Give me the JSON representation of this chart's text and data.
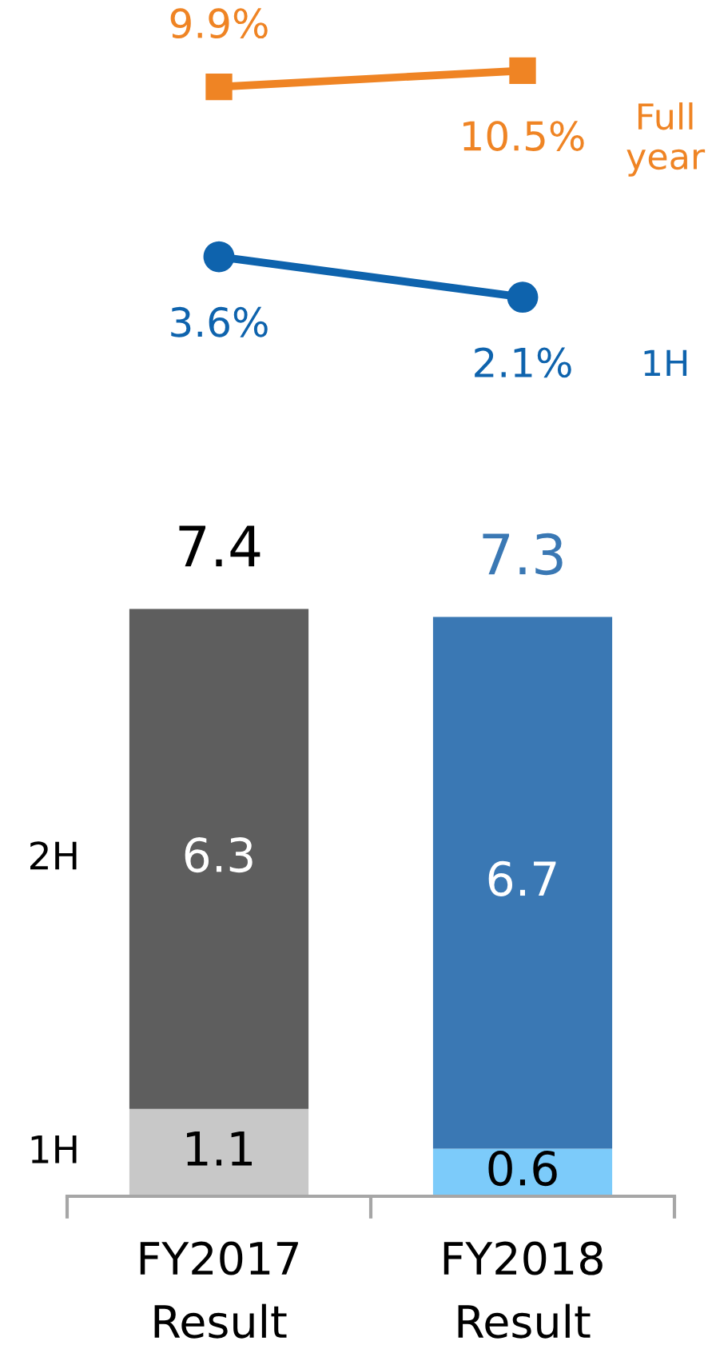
{
  "chart_data": [
    {
      "type": "line",
      "categories": [
        null,
        null
      ],
      "series": [
        {
          "name": "Full year",
          "color": "#ef8424",
          "marker": "square",
          "values": [
            9.9,
            10.5
          ],
          "value_labels": [
            "9.9%",
            "10.5%"
          ]
        },
        {
          "name": "1H",
          "color": "#0e63ad",
          "marker": "circle",
          "values": [
            3.6,
            2.1
          ],
          "value_labels": [
            "3.6%",
            "2.1%"
          ]
        }
      ],
      "line_style": "solid",
      "tick_labels": false
    },
    {
      "type": "bar",
      "stacked": true,
      "categories": [
        "FY2017 Result",
        "FY2018 Result"
      ],
      "series": [
        {
          "name": "1H",
          "colors": [
            "#c8c8c8",
            "#7ccbfa"
          ],
          "values": [
            1.1,
            0.6
          ]
        },
        {
          "name": "2H",
          "colors": [
            "#5e5e5e",
            "#3a78b4"
          ],
          "values": [
            6.3,
            6.7
          ]
        }
      ],
      "data_labels": true,
      "totals": [
        "7.4",
        "7.3"
      ],
      "tick_labels": "x"
    }
  ]
}
